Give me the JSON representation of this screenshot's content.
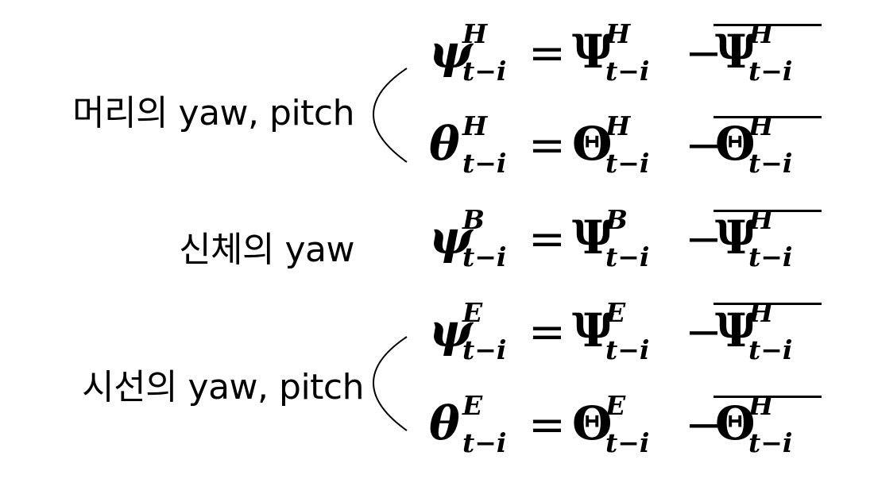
{
  "labels": {
    "head": "머리의 yaw, pitch",
    "body": "신체의 yaw",
    "gaze": "시선의 yaw, pitch"
  },
  "equations": [
    {
      "lhs": "ψ",
      "lhs_sup": "H",
      "sub": "t−i",
      "eq": "=",
      "rhs": "Ψ",
      "rhs_sup": "H",
      "minus": "−",
      "mean": "Ψ",
      "mean_sup": "H"
    },
    {
      "lhs": "θ",
      "lhs_sup": "H",
      "sub": "t−i",
      "eq": "=",
      "rhs": "Θ",
      "rhs_sup": "H",
      "minus": "−",
      "mean": "Θ",
      "mean_sup": "H"
    },
    {
      "lhs": "ψ",
      "lhs_sup": "B",
      "sub": "t−i",
      "eq": "=",
      "rhs": "Ψ",
      "rhs_sup": "B",
      "minus": "−",
      "mean": "Ψ",
      "mean_sup": "H"
    },
    {
      "lhs": "ψ",
      "lhs_sup": "E",
      "sub": "t−i",
      "eq": "=",
      "rhs": "Ψ",
      "rhs_sup": "E",
      "minus": "−",
      "mean": "Ψ",
      "mean_sup": "H"
    },
    {
      "lhs": "θ",
      "lhs_sup": "E",
      "sub": "t−i",
      "eq": "=",
      "rhs": "Θ",
      "rhs_sup": "E",
      "minus": "−",
      "mean": "Θ",
      "mean_sup": "H"
    }
  ]
}
